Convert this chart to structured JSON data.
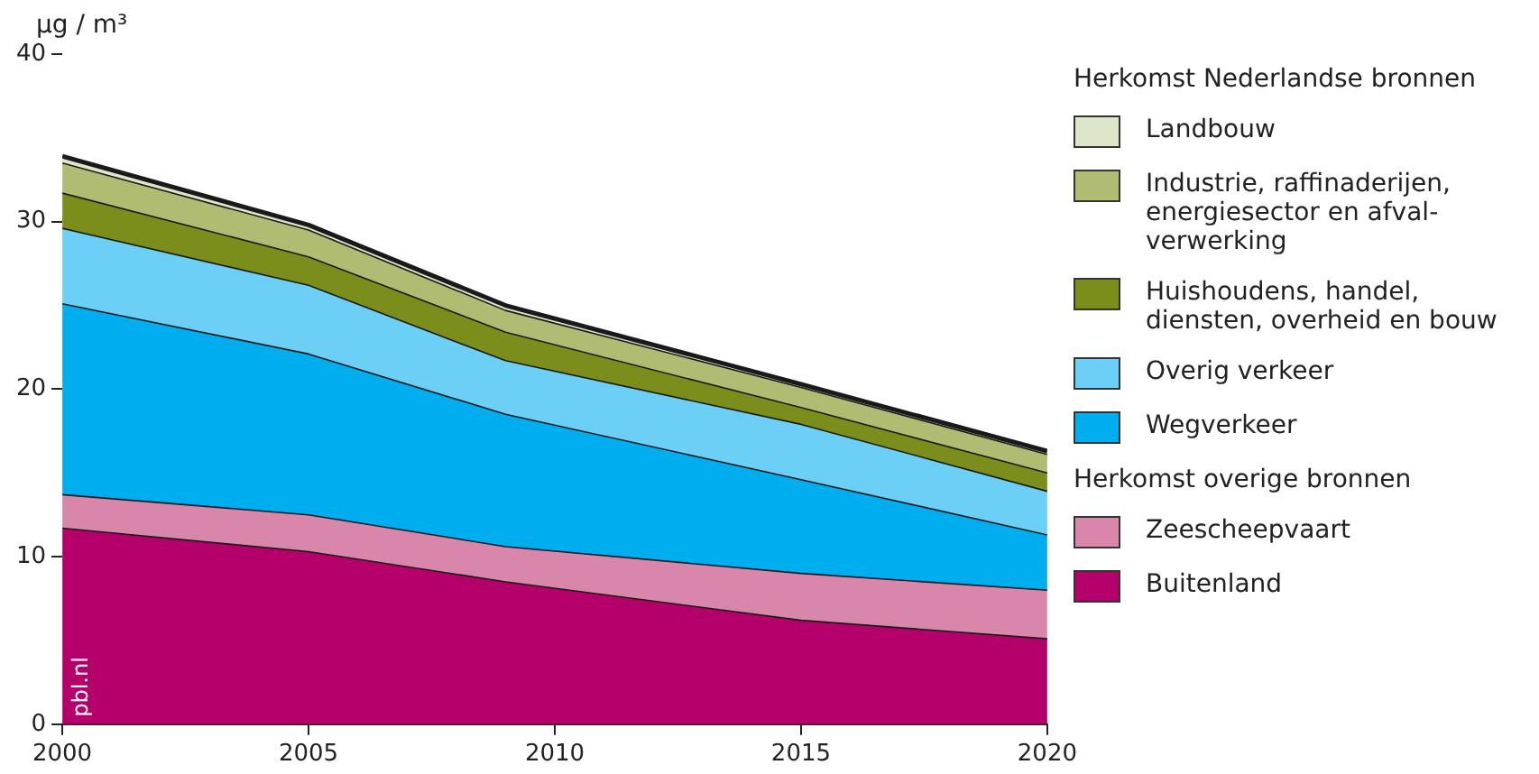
{
  "chart_data": {
    "type": "area",
    "stacked": true,
    "ylabel": "µg / m³",
    "legend_title": "Herkomst Nederlandse bronnen",
    "annotations": [
      "Herkomst overige bronnen",
      "pbl.nl"
    ],
    "x": [
      2000,
      2005,
      2009,
      2015,
      2020
    ],
    "xlim": [
      2000,
      2020
    ],
    "xticks": [
      2000,
      2005,
      2010,
      2015,
      2020
    ],
    "ylim": [
      0,
      40
    ],
    "yticks": [
      0,
      10,
      20,
      30,
      40
    ],
    "grid": false,
    "legend": "right",
    "marker": "none",
    "series": [
      {
        "name": "Buitenland",
        "color": "#b5006b",
        "values": [
          11.7,
          10.3,
          8.5,
          6.2,
          5.1
        ]
      },
      {
        "name": "Zeescheepvaart",
        "color": "#d986ab",
        "values": [
          2.0,
          2.2,
          2.1,
          2.8,
          2.9
        ]
      },
      {
        "name": "Wegverkeer",
        "color": "#00aeef",
        "values": [
          11.4,
          9.6,
          7.9,
          5.6,
          3.3
        ]
      },
      {
        "name": "Overig verkeer",
        "color": "#6ccff6",
        "values": [
          4.5,
          4.1,
          3.2,
          3.3,
          2.6
        ]
      },
      {
        "name": "Huishoudens, handel, diensten, overheid en bouw",
        "color": "#7b8e1c",
        "values": [
          2.1,
          1.7,
          1.7,
          1.0,
          1.1
        ]
      },
      {
        "name": "Industrie, raffinaderijen, energiesector en afval-verwerking",
        "color": "#b0bc72",
        "values": [
          1.8,
          1.6,
          1.3,
          1.2,
          1.1
        ]
      },
      {
        "name": "Landbouw",
        "color": "#dde6c8",
        "values": [
          0.4,
          0.3,
          0.3,
          0.2,
          0.2
        ]
      }
    ]
  }
}
